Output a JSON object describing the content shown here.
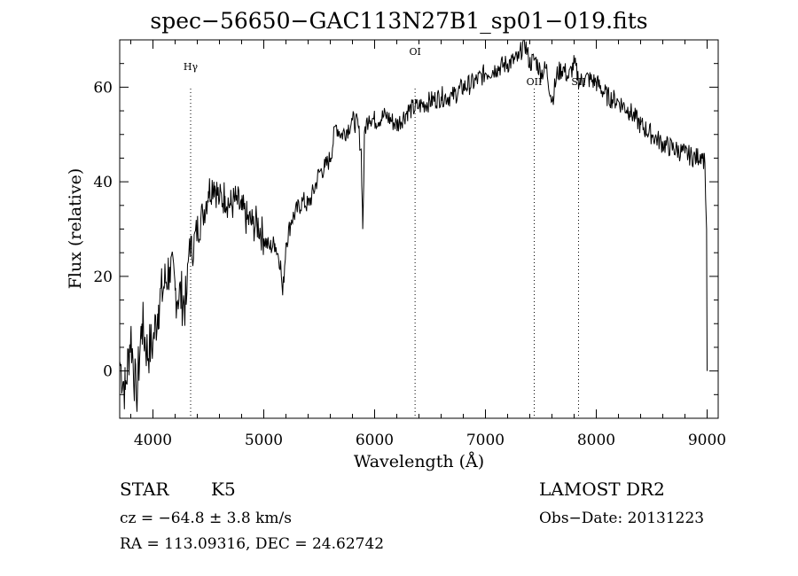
{
  "chart_data": {
    "type": "line",
    "title": "spec−56650−GAC113N27B1_sp01−019.fits",
    "xlabel": "Wavelength (Å)",
    "ylabel": "Flux (relative)",
    "xlim": [
      3700,
      9100
    ],
    "ylim": [
      -10,
      70
    ],
    "x_ticks": [
      "4000",
      "5000",
      "6000",
      "7000",
      "8000",
      "9000"
    ],
    "y_ticks": [
      "0",
      "20",
      "40",
      "60"
    ],
    "grid": false,
    "series": [
      {
        "x": [
          3700,
          3750,
          3800,
          3850,
          3900,
          3950,
          4000,
          4050,
          4100,
          4150,
          4200,
          4250,
          4300,
          4330,
          4350,
          4400,
          4450,
          4500,
          4550,
          4600,
          4650,
          4700,
          4750,
          4800,
          4850,
          4900,
          4950,
          5000,
          5050,
          5100,
          5150,
          5170,
          5200,
          5250,
          5300,
          5350,
          5400,
          5450,
          5500,
          5550,
          5600,
          5650,
          5700,
          5750,
          5800,
          5850,
          5880,
          5893,
          5910,
          5950,
          6000,
          6100,
          6200,
          6300,
          6400,
          6500,
          6600,
          6700,
          6800,
          6900,
          7000,
          7100,
          7200,
          7300,
          7350,
          7400,
          7450,
          7500,
          7550,
          7600,
          7650,
          7700,
          7750,
          7800,
          7850,
          7900,
          8000,
          8100,
          8200,
          8300,
          8400,
          8500,
          8600,
          8700,
          8800,
          8900,
          8950,
          8980,
          8995,
          9000
        ],
        "y": [
          2,
          -4,
          8,
          -6,
          10,
          4,
          6,
          14,
          18,
          22,
          17,
          16,
          14,
          28,
          25,
          30,
          33,
          38,
          40,
          36,
          37,
          35,
          36,
          34,
          32,
          31,
          31,
          28,
          26,
          27,
          23,
          16,
          27,
          32,
          34,
          36,
          35,
          38,
          42,
          43,
          45,
          52,
          50,
          51,
          53,
          52,
          46,
          30,
          51,
          54,
          53,
          54,
          52,
          55,
          56,
          57,
          58,
          58,
          60,
          61,
          63,
          64,
          65,
          66,
          70,
          65,
          66,
          63,
          64,
          57,
          63,
          64,
          62,
          65,
          61,
          62,
          61,
          58,
          57,
          55,
          52,
          50,
          48,
          47,
          46,
          45,
          46,
          44,
          30,
          0
        ]
      }
    ],
    "line_markers": [
      {
        "label": "Hγ",
        "x": 4340
      },
      {
        "label": "OI",
        "x": 6365
      },
      {
        "label": "OII",
        "x": 7440
      },
      {
        "label": "SII",
        "x": 7840
      }
    ]
  },
  "info": {
    "object_class": "STAR",
    "subclass": "K5",
    "survey": "LAMOST DR2",
    "cz": "cz = −64.8 ± 3.8 km/s",
    "obs_date": "Obs−Date: 20131223",
    "coords": "RA = 113.09316, DEC =  24.62742"
  }
}
